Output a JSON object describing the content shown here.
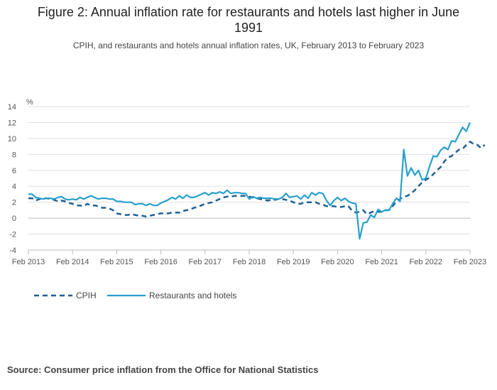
{
  "title_line1": "Figure 2: Annual inflation rate for restaurants and hotels last higher in June",
  "title_line2": "1991",
  "subtitle": "CPIH, and restaurants and hotels annual inflation rates, UK, February 2013 to February 2023",
  "source": "Source: Consumer price inflation from the Office for National Statistics",
  "colors": {
    "cpih": "#206095",
    "restaurants": "#27a0cc",
    "grid": "#e0e0e0",
    "axis": "#bbbbbb"
  },
  "chart_data": {
    "type": "line",
    "title": "Figure 2: Annual inflation rate for restaurants and hotels last higher in June 1991",
    "subtitle": "CPIH, and restaurants and hotels annual inflation rates, UK, February 2013 to February 2023",
    "ylabel": "%",
    "xlabel": "",
    "ylim": [
      -4,
      14
    ],
    "yticks": [
      "14",
      "12",
      "10",
      "8",
      "6",
      "4",
      "2",
      "0",
      "-2",
      "-4"
    ],
    "xticks": [
      "Feb 2013",
      "Feb 2014",
      "Feb 2015",
      "Feb 2016",
      "Feb 2017",
      "Feb 2018",
      "Feb 2019",
      "Feb 2020",
      "Feb 2021",
      "Feb 2022",
      "Feb 2023"
    ],
    "x_start": "Feb 2013",
    "x_end": "Feb 2023",
    "grid": true,
    "legend_position": "bottom-left",
    "series": [
      {
        "name": "CPIH",
        "style": "dashed",
        "values": [
          2.5,
          2.5,
          2.2,
          2.4,
          2.5,
          2.5,
          2.4,
          2.3,
          2.1,
          2.2,
          2.1,
          1.9,
          1.8,
          1.6,
          1.6,
          1.5,
          1.8,
          1.6,
          1.6,
          1.5,
          1.3,
          1.3,
          1.2,
          1.0,
          0.6,
          0.5,
          0.4,
          0.4,
          0.5,
          0.4,
          0.3,
          0.3,
          0.2,
          0.3,
          0.4,
          0.5,
          0.6,
          0.6,
          0.6,
          0.7,
          0.7,
          0.7,
          0.9,
          1.0,
          1.1,
          1.3,
          1.4,
          1.6,
          1.8,
          1.9,
          2.0,
          2.2,
          2.4,
          2.6,
          2.7,
          2.7,
          2.8,
          2.8,
          2.8,
          2.8,
          2.7,
          2.6,
          2.5,
          2.4,
          2.3,
          2.2,
          2.3,
          2.3,
          2.4,
          2.4,
          2.3,
          2.2,
          2.0,
          1.8,
          1.8,
          2.0,
          2.0,
          2.0,
          2.0,
          1.8,
          1.7,
          1.5,
          1.5,
          1.5,
          1.4,
          1.4,
          1.5,
          1.5,
          0.9,
          0.7,
          0.8,
          1.0,
          0.5,
          0.7,
          0.9,
          0.8,
          0.8,
          1.0,
          1.0,
          1.5,
          2.1,
          2.4,
          2.7,
          2.8,
          3.1,
          3.5,
          4.0,
          4.5,
          4.8,
          5.1,
          5.5,
          6.0,
          6.4,
          7.1,
          7.6,
          7.8,
          8.2,
          8.6,
          8.7,
          9.2,
          9.6,
          9.3,
          9.2,
          8.8,
          9.2
        ]
      },
      {
        "name": "Restaurants and hotels",
        "style": "solid",
        "values": [
          3.0,
          3.0,
          2.6,
          2.5,
          2.4,
          2.5,
          2.5,
          2.4,
          2.6,
          2.7,
          2.4,
          2.3,
          2.4,
          2.3,
          2.6,
          2.4,
          2.6,
          2.8,
          2.6,
          2.4,
          2.5,
          2.5,
          2.4,
          2.4,
          2.1,
          2.1,
          2.0,
          2.0,
          2.0,
          1.7,
          1.8,
          1.8,
          1.6,
          1.8,
          1.6,
          1.6,
          1.9,
          2.1,
          2.3,
          2.6,
          2.4,
          2.8,
          2.5,
          2.9,
          2.6,
          2.6,
          2.8,
          3.0,
          3.2,
          2.9,
          3.2,
          3.1,
          3.3,
          3.1,
          3.5,
          3.1,
          3.2,
          3.2,
          3.1,
          3.1,
          2.4,
          2.7,
          2.5,
          2.6,
          2.5,
          2.5,
          2.5,
          2.4,
          2.4,
          2.6,
          3.1,
          2.6,
          2.7,
          2.8,
          2.4,
          2.9,
          2.5,
          3.2,
          2.9,
          3.2,
          3.1,
          2.2,
          1.6,
          2.2,
          2.6,
          2.2,
          2.5,
          2.1,
          1.9,
          1.8,
          -2.6,
          -0.6,
          -0.5,
          0.4,
          0.1,
          1.1,
          0.8,
          1.0,
          1.0,
          1.8,
          2.5,
          2.1,
          8.6,
          5.3,
          6.3,
          5.4,
          6.0,
          4.8,
          5.0,
          6.5,
          7.8,
          7.7,
          8.5,
          8.9,
          8.6,
          9.7,
          9.6,
          10.5,
          11.4,
          10.9,
          12.0
        ]
      }
    ]
  }
}
